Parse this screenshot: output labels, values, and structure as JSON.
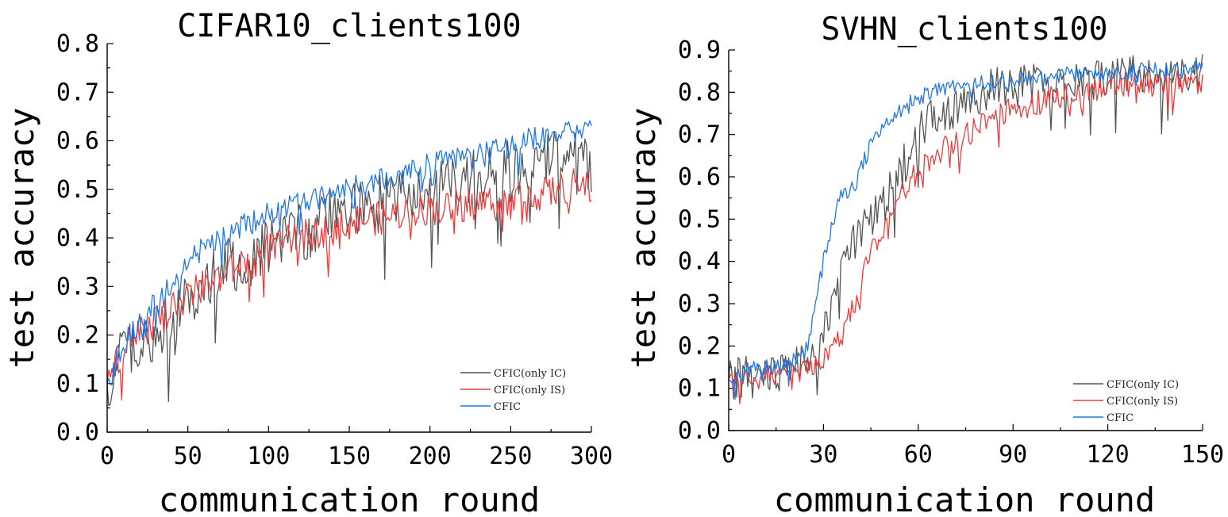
{
  "colors": {
    "only_ic": "#555555",
    "only_is": "#ee3b3b",
    "cfic": "#1f77e8"
  },
  "chart_data": [
    {
      "type": "line",
      "title": "CIFAR10_clients100",
      "xlabel": "communication round",
      "ylabel": "test accuracy",
      "xlim": [
        0,
        300
      ],
      "ylim": [
        0,
        0.8
      ],
      "xticks": [
        0,
        50,
        100,
        150,
        200,
        250,
        300
      ],
      "xtick_labels": [
        "0",
        "50",
        "100",
        "150",
        "200",
        "250",
        "300"
      ],
      "yticks": [
        0,
        0.1,
        0.2,
        0.3,
        0.4,
        0.5,
        0.6,
        0.7,
        0.8
      ],
      "ytick_labels": [
        "0.0",
        "0.1",
        "0.2",
        "0.3",
        "0.4",
        "0.5",
        "0.6",
        "0.7",
        "0.8"
      ],
      "legend_position": "bottom-right",
      "series": [
        {
          "name": "CFIC(only IC)",
          "color": "#555555",
          "x": [
            0,
            10,
            20,
            30,
            40,
            50,
            60,
            70,
            80,
            90,
            100,
            110,
            120,
            130,
            140,
            150,
            160,
            170,
            180,
            190,
            200,
            210,
            220,
            230,
            240,
            250,
            260,
            270,
            280,
            290,
            300
          ],
          "values": [
            0.1,
            0.16,
            0.18,
            0.2,
            0.22,
            0.27,
            0.3,
            0.33,
            0.35,
            0.36,
            0.38,
            0.4,
            0.41,
            0.42,
            0.44,
            0.45,
            0.46,
            0.47,
            0.48,
            0.49,
            0.5,
            0.51,
            0.52,
            0.53,
            0.53,
            0.55,
            0.55,
            0.56,
            0.57,
            0.57,
            0.55
          ],
          "noise": 0.06
        },
        {
          "name": "CFIC(only IS)",
          "color": "#ee3b3b",
          "x": [
            0,
            10,
            20,
            30,
            40,
            50,
            60,
            70,
            80,
            90,
            100,
            110,
            120,
            130,
            140,
            150,
            160,
            170,
            180,
            190,
            200,
            210,
            220,
            230,
            240,
            250,
            260,
            270,
            280,
            290,
            300
          ],
          "values": [
            0.1,
            0.17,
            0.2,
            0.23,
            0.25,
            0.28,
            0.3,
            0.32,
            0.34,
            0.36,
            0.38,
            0.39,
            0.4,
            0.41,
            0.42,
            0.43,
            0.44,
            0.44,
            0.45,
            0.46,
            0.46,
            0.46,
            0.47,
            0.47,
            0.48,
            0.48,
            0.49,
            0.49,
            0.5,
            0.51,
            0.5
          ],
          "noise": 0.035
        },
        {
          "name": "CFIC",
          "color": "#1f77e8",
          "x": [
            0,
            10,
            20,
            30,
            40,
            50,
            60,
            70,
            80,
            90,
            100,
            110,
            120,
            130,
            140,
            150,
            160,
            170,
            180,
            190,
            200,
            210,
            220,
            230,
            240,
            250,
            260,
            270,
            280,
            290,
            300
          ],
          "values": [
            0.1,
            0.18,
            0.23,
            0.27,
            0.3,
            0.35,
            0.38,
            0.4,
            0.42,
            0.43,
            0.45,
            0.46,
            0.47,
            0.48,
            0.49,
            0.5,
            0.51,
            0.52,
            0.53,
            0.54,
            0.55,
            0.56,
            0.57,
            0.57,
            0.58,
            0.59,
            0.6,
            0.61,
            0.61,
            0.62,
            0.62
          ],
          "noise": 0.025
        }
      ]
    },
    {
      "type": "line",
      "title": "SVHN_clients100",
      "xlabel": "communication round",
      "ylabel": "test accuracy",
      "xlim": [
        0,
        150
      ],
      "ylim": [
        0,
        0.9
      ],
      "xticks": [
        0,
        30,
        60,
        90,
        120,
        150
      ],
      "xtick_labels": [
        "0",
        "30",
        "60",
        "90",
        "120",
        "150"
      ],
      "yticks": [
        0,
        0.1,
        0.2,
        0.3,
        0.4,
        0.5,
        0.6,
        0.7,
        0.8,
        0.9
      ],
      "ytick_labels": [
        "0.0",
        "0.1",
        "0.2",
        "0.3",
        "0.4",
        "0.5",
        "0.6",
        "0.7",
        "0.8",
        "0.9"
      ],
      "legend_position": "bottom-right",
      "series": [
        {
          "name": "CFIC(only IC)",
          "color": "#555555",
          "x": [
            0,
            5,
            10,
            15,
            20,
            25,
            30,
            35,
            40,
            45,
            50,
            55,
            60,
            65,
            70,
            75,
            80,
            85,
            90,
            95,
            100,
            105,
            110,
            115,
            120,
            125,
            130,
            135,
            140,
            145,
            150
          ],
          "values": [
            0.12,
            0.13,
            0.12,
            0.14,
            0.15,
            0.17,
            0.22,
            0.35,
            0.45,
            0.5,
            0.55,
            0.62,
            0.7,
            0.74,
            0.76,
            0.78,
            0.8,
            0.81,
            0.81,
            0.82,
            0.82,
            0.83,
            0.83,
            0.83,
            0.83,
            0.84,
            0.84,
            0.84,
            0.83,
            0.84,
            0.85
          ],
          "noise": 0.05
        },
        {
          "name": "CFIC(only IS)",
          "color": "#ee3b3b",
          "x": [
            0,
            5,
            10,
            15,
            20,
            25,
            30,
            35,
            40,
            45,
            50,
            55,
            60,
            65,
            70,
            75,
            80,
            85,
            90,
            95,
            100,
            105,
            110,
            115,
            120,
            125,
            130,
            135,
            140,
            145,
            150
          ],
          "values": [
            0.12,
            0.12,
            0.12,
            0.13,
            0.12,
            0.14,
            0.17,
            0.21,
            0.3,
            0.42,
            0.5,
            0.56,
            0.62,
            0.65,
            0.68,
            0.7,
            0.72,
            0.74,
            0.76,
            0.77,
            0.78,
            0.79,
            0.8,
            0.81,
            0.81,
            0.82,
            0.82,
            0.82,
            0.82,
            0.83,
            0.83
          ],
          "noise": 0.03
        },
        {
          "name": "CFIC",
          "color": "#1f77e8",
          "x": [
            0,
            5,
            10,
            15,
            20,
            25,
            30,
            35,
            40,
            45,
            50,
            55,
            60,
            65,
            70,
            75,
            80,
            85,
            90,
            95,
            100,
            105,
            110,
            115,
            120,
            125,
            130,
            135,
            140,
            145,
            150
          ],
          "values": [
            0.12,
            0.14,
            0.15,
            0.15,
            0.16,
            0.2,
            0.4,
            0.55,
            0.58,
            0.68,
            0.72,
            0.76,
            0.79,
            0.8,
            0.81,
            0.81,
            0.82,
            0.82,
            0.82,
            0.83,
            0.83,
            0.84,
            0.84,
            0.84,
            0.84,
            0.85,
            0.85,
            0.85,
            0.85,
            0.85,
            0.86
          ],
          "noise": 0.02
        }
      ]
    }
  ]
}
